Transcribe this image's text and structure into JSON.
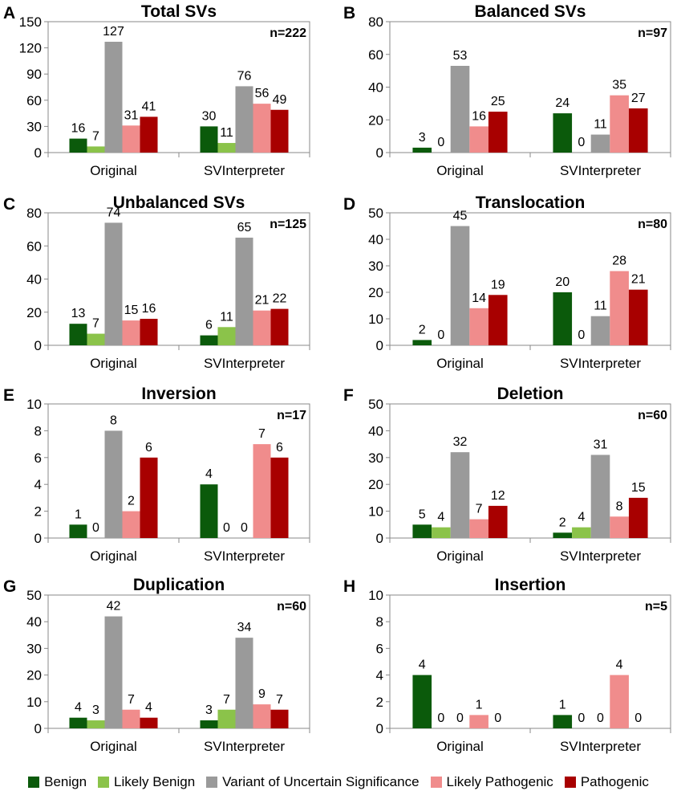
{
  "legend": {
    "benign": "Benign",
    "likely_benign": "Likely Benign",
    "vus": "Variant of Uncertain Significance",
    "likely_pathogenic": "Likely Pathogenic",
    "pathogenic": "Pathogenic"
  },
  "colors": {
    "benign": "#0b5a0b",
    "likely_benign": "#8bc34a",
    "vus": "#9a9a9a",
    "likely_pathogenic": "#f08c8c",
    "pathogenic": "#a80000"
  },
  "chart_data": [
    {
      "panel": "A",
      "type": "bar",
      "title": "Total SVs",
      "n_label": "n=222",
      "categories": [
        "Original",
        "SVInterpreter"
      ],
      "ylim": [
        0,
        150
      ],
      "yticks": [
        0,
        30,
        60,
        90,
        120,
        150
      ],
      "series": [
        {
          "key": "benign",
          "name": "Benign",
          "values": [
            16,
            30
          ]
        },
        {
          "key": "likely_benign",
          "name": "Likely Benign",
          "values": [
            7,
            11
          ]
        },
        {
          "key": "vus",
          "name": "Variant of Uncertain Significance",
          "values": [
            127,
            76
          ]
        },
        {
          "key": "likely_pathogenic",
          "name": "Likely Pathogenic",
          "values": [
            31,
            56
          ]
        },
        {
          "key": "pathogenic",
          "name": "Pathogenic",
          "values": [
            41,
            49
          ]
        }
      ]
    },
    {
      "panel": "B",
      "type": "bar",
      "title": "Balanced SVs",
      "n_label": "n=97",
      "categories": [
        "Original",
        "SVInterpreter"
      ],
      "ylim": [
        0,
        80
      ],
      "yticks": [
        0,
        20,
        40,
        60,
        80
      ],
      "series": [
        {
          "key": "benign",
          "name": "Benign",
          "values": [
            3,
            24
          ]
        },
        {
          "key": "likely_benign",
          "name": "Likely Benign",
          "values": [
            0,
            0
          ]
        },
        {
          "key": "vus",
          "name": "Variant of Uncertain Significance",
          "values": [
            53,
            11
          ]
        },
        {
          "key": "likely_pathogenic",
          "name": "Likely Pathogenic",
          "values": [
            16,
            35
          ]
        },
        {
          "key": "pathogenic",
          "name": "Pathogenic",
          "values": [
            25,
            27
          ]
        }
      ]
    },
    {
      "panel": "C",
      "type": "bar",
      "title": "Unbalanced SVs",
      "n_label": "n=125",
      "categories": [
        "Original",
        "SVInterpreter"
      ],
      "ylim": [
        0,
        80
      ],
      "yticks": [
        0,
        20,
        40,
        60,
        80
      ],
      "series": [
        {
          "key": "benign",
          "name": "Benign",
          "values": [
            13,
            6
          ]
        },
        {
          "key": "likely_benign",
          "name": "Likely Benign",
          "values": [
            7,
            11
          ]
        },
        {
          "key": "vus",
          "name": "Variant of Uncertain Significance",
          "values": [
            74,
            65
          ]
        },
        {
          "key": "likely_pathogenic",
          "name": "Likely Pathogenic",
          "values": [
            15,
            21
          ]
        },
        {
          "key": "pathogenic",
          "name": "Pathogenic",
          "values": [
            16,
            22
          ]
        }
      ]
    },
    {
      "panel": "D",
      "type": "bar",
      "title": "Translocation",
      "n_label": "n=80",
      "categories": [
        "Original",
        "SVInterpreter"
      ],
      "ylim": [
        0,
        50
      ],
      "yticks": [
        0,
        10,
        20,
        30,
        40,
        50
      ],
      "series": [
        {
          "key": "benign",
          "name": "Benign",
          "values": [
            2,
            20
          ]
        },
        {
          "key": "likely_benign",
          "name": "Likely Benign",
          "values": [
            0,
            0
          ]
        },
        {
          "key": "vus",
          "name": "Variant of Uncertain Significance",
          "values": [
            45,
            11
          ]
        },
        {
          "key": "likely_pathogenic",
          "name": "Likely Pathogenic",
          "values": [
            14,
            28
          ]
        },
        {
          "key": "pathogenic",
          "name": "Pathogenic",
          "values": [
            19,
            21
          ]
        }
      ]
    },
    {
      "panel": "E",
      "type": "bar",
      "title": "Inversion",
      "n_label": "n=17",
      "categories": [
        "Original",
        "SVInterpreter"
      ],
      "ylim": [
        0,
        10
      ],
      "yticks": [
        0,
        2,
        4,
        6,
        8,
        10
      ],
      "series": [
        {
          "key": "benign",
          "name": "Benign",
          "values": [
            1,
            4
          ]
        },
        {
          "key": "likely_benign",
          "name": "Likely Benign",
          "values": [
            0,
            0
          ]
        },
        {
          "key": "vus",
          "name": "Variant of Uncertain Significance",
          "values": [
            8,
            0
          ]
        },
        {
          "key": "likely_pathogenic",
          "name": "Likely Pathogenic",
          "values": [
            2,
            7
          ]
        },
        {
          "key": "pathogenic",
          "name": "Pathogenic",
          "values": [
            6,
            6
          ]
        }
      ]
    },
    {
      "panel": "F",
      "type": "bar",
      "title": "Deletion",
      "n_label": "n=60",
      "categories": [
        "Original",
        "SVInterpreter"
      ],
      "ylim": [
        0,
        50
      ],
      "yticks": [
        0,
        10,
        20,
        30,
        40,
        50
      ],
      "series": [
        {
          "key": "benign",
          "name": "Benign",
          "values": [
            5,
            2
          ]
        },
        {
          "key": "likely_benign",
          "name": "Likely Benign",
          "values": [
            4,
            4
          ]
        },
        {
          "key": "vus",
          "name": "Variant of Uncertain Significance",
          "values": [
            32,
            31
          ]
        },
        {
          "key": "likely_pathogenic",
          "name": "Likely Pathogenic",
          "values": [
            7,
            8
          ]
        },
        {
          "key": "pathogenic",
          "name": "Pathogenic",
          "values": [
            12,
            15
          ]
        }
      ]
    },
    {
      "panel": "G",
      "type": "bar",
      "title": "Duplication",
      "n_label": "n=60",
      "categories": [
        "Original",
        "SVInterpreter"
      ],
      "ylim": [
        0,
        50
      ],
      "yticks": [
        0,
        10,
        20,
        30,
        40,
        50
      ],
      "series": [
        {
          "key": "benign",
          "name": "Benign",
          "values": [
            4,
            3
          ]
        },
        {
          "key": "likely_benign",
          "name": "Likely Benign",
          "values": [
            3,
            7
          ]
        },
        {
          "key": "vus",
          "name": "Variant of Uncertain Significance",
          "values": [
            42,
            34
          ]
        },
        {
          "key": "likely_pathogenic",
          "name": "Likely Pathogenic",
          "values": [
            7,
            9
          ]
        },
        {
          "key": "pathogenic",
          "name": "Pathogenic",
          "values": [
            4,
            7
          ]
        }
      ]
    },
    {
      "panel": "H",
      "type": "bar",
      "title": "Insertion",
      "n_label": "n=5",
      "categories": [
        "Original",
        "SVInterpreter"
      ],
      "ylim": [
        0,
        10
      ],
      "yticks": [
        0,
        2,
        4,
        6,
        8,
        10
      ],
      "series": [
        {
          "key": "benign",
          "name": "Benign",
          "values": [
            4,
            1
          ]
        },
        {
          "key": "likely_benign",
          "name": "Likely Benign",
          "values": [
            0,
            0
          ]
        },
        {
          "key": "vus",
          "name": "Variant of Uncertain Significance",
          "values": [
            0,
            0
          ]
        },
        {
          "key": "likely_pathogenic",
          "name": "Likely Pathogenic",
          "values": [
            1,
            4
          ]
        },
        {
          "key": "pathogenic",
          "name": "Pathogenic",
          "values": [
            0,
            0
          ]
        }
      ]
    }
  ]
}
